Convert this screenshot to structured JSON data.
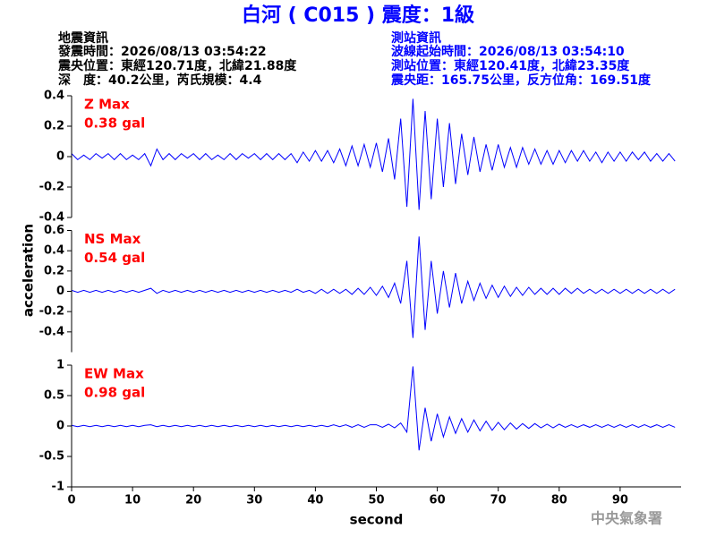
{
  "header": {
    "title": "白河 ( C015 ) 震度：1級",
    "left": [
      "地震資訊",
      "發震時間：2026/08/13 03:54:22",
      "震央位置：東經120.71度，北緯21.88度",
      "深　度：40.2公里，芮氏規模：4.4"
    ],
    "right": [
      "測站資訊",
      "波線起始時間：2026/08/13 03:54:10",
      "測站位置：東經120.41度，北緯23.35度",
      "震央距：165.75公里，反方位角：169.51度"
    ],
    "footer": "中央氣象署"
  },
  "ylabel": "acceleration",
  "chart_data": [
    {
      "type": "line",
      "annotation": "Z Max",
      "max_label": "0.38 gal",
      "color": "#0000ff",
      "annotation_color": "#ff0000",
      "ylim": [
        -0.4,
        0.4
      ],
      "yticks": [
        0.4,
        0.2,
        0,
        -0.2,
        -0.4
      ],
      "xlim": [
        0,
        100
      ],
      "x": [
        0,
        1,
        2,
        3,
        4,
        5,
        6,
        7,
        8,
        9,
        10,
        11,
        12,
        13,
        14,
        15,
        16,
        17,
        18,
        19,
        20,
        21,
        22,
        23,
        24,
        25,
        26,
        27,
        28,
        29,
        30,
        31,
        32,
        33,
        34,
        35,
        36,
        37,
        38,
        39,
        40,
        41,
        42,
        43,
        44,
        45,
        46,
        47,
        48,
        49,
        50,
        51,
        52,
        53,
        54,
        55,
        56,
        57,
        58,
        59,
        60,
        61,
        62,
        63,
        64,
        65,
        66,
        67,
        68,
        69,
        70,
        71,
        72,
        73,
        74,
        75,
        76,
        77,
        78,
        79,
        80,
        81,
        82,
        83,
        84,
        85,
        86,
        87,
        88,
        89,
        90,
        91,
        92,
        93,
        94,
        95,
        96,
        97,
        98,
        99
      ],
      "values": [
        0.02,
        -0.02,
        0.01,
        -0.02,
        0.02,
        -0.01,
        0.02,
        -0.02,
        0.02,
        -0.02,
        0.01,
        -0.02,
        0.02,
        -0.06,
        0.05,
        -0.02,
        0.02,
        -0.02,
        0.02,
        -0.01,
        0.02,
        -0.02,
        0.02,
        -0.02,
        0.01,
        -0.02,
        0.02,
        -0.02,
        0.02,
        -0.01,
        0.02,
        -0.02,
        0.02,
        -0.02,
        0.02,
        -0.02,
        0.02,
        -0.04,
        0.03,
        -0.03,
        0.04,
        -0.03,
        0.04,
        -0.04,
        0.05,
        -0.06,
        0.07,
        -0.06,
        0.08,
        -0.07,
        0.09,
        -0.1,
        0.12,
        -0.15,
        0.25,
        -0.33,
        0.38,
        -0.35,
        0.3,
        -0.28,
        0.25,
        -0.2,
        0.22,
        -0.18,
        0.15,
        -0.12,
        0.13,
        -0.1,
        0.08,
        -0.09,
        0.08,
        -0.07,
        0.06,
        -0.07,
        0.06,
        -0.05,
        0.05,
        -0.05,
        0.04,
        -0.05,
        0.04,
        -0.04,
        0.04,
        -0.03,
        0.04,
        -0.03,
        0.03,
        -0.04,
        0.03,
        -0.03,
        0.03,
        -0.03,
        0.03,
        -0.02,
        0.03,
        -0.03,
        0.02,
        -0.03,
        0.02,
        -0.03
      ]
    },
    {
      "type": "line",
      "annotation": "NS Max",
      "max_label": "0.54 gal",
      "color": "#0000ff",
      "annotation_color": "#ff0000",
      "ylim": [
        -0.6,
        0.6
      ],
      "yticks": [
        0.6,
        0.4,
        0.2,
        0,
        -0.2,
        -0.4
      ],
      "xlim": [
        0,
        100
      ],
      "x": [
        0,
        1,
        2,
        3,
        4,
        5,
        6,
        7,
        8,
        9,
        10,
        11,
        12,
        13,
        14,
        15,
        16,
        17,
        18,
        19,
        20,
        21,
        22,
        23,
        24,
        25,
        26,
        27,
        28,
        29,
        30,
        31,
        32,
        33,
        34,
        35,
        36,
        37,
        38,
        39,
        40,
        41,
        42,
        43,
        44,
        45,
        46,
        47,
        48,
        49,
        50,
        51,
        52,
        53,
        54,
        55,
        56,
        57,
        58,
        59,
        60,
        61,
        62,
        63,
        64,
        65,
        66,
        67,
        68,
        69,
        70,
        71,
        72,
        73,
        74,
        75,
        76,
        77,
        78,
        79,
        80,
        81,
        82,
        83,
        84,
        85,
        86,
        87,
        88,
        89,
        90,
        91,
        92,
        93,
        94,
        95,
        96,
        97,
        98,
        99
      ],
      "values": [
        0.01,
        -0.01,
        0.01,
        -0.01,
        0.01,
        -0.01,
        0.01,
        -0.01,
        0.01,
        -0.01,
        0.01,
        -0.01,
        0.01,
        0.03,
        -0.02,
        0.01,
        -0.01,
        0.01,
        -0.01,
        0.01,
        -0.01,
        0.01,
        -0.01,
        0.01,
        -0.01,
        0.01,
        -0.01,
        0.01,
        -0.01,
        0.01,
        -0.01,
        0.01,
        -0.01,
        0.01,
        -0.01,
        0.01,
        -0.01,
        0.02,
        -0.01,
        0.01,
        -0.02,
        0.02,
        -0.02,
        0.02,
        -0.02,
        0.02,
        -0.03,
        0.03,
        -0.03,
        0.04,
        -0.04,
        0.05,
        -0.06,
        0.08,
        -0.12,
        0.3,
        -0.46,
        0.54,
        -0.38,
        0.3,
        -0.22,
        0.2,
        -0.16,
        0.18,
        -0.12,
        0.1,
        -0.09,
        0.08,
        -0.07,
        0.06,
        -0.06,
        0.05,
        -0.05,
        0.04,
        -0.04,
        0.04,
        -0.03,
        0.03,
        -0.03,
        0.03,
        -0.03,
        0.03,
        -0.02,
        0.03,
        -0.02,
        0.02,
        -0.02,
        0.02,
        -0.02,
        0.02,
        -0.02,
        0.02,
        -0.02,
        0.02,
        -0.02,
        0.02,
        -0.02,
        0.02,
        -0.02,
        0.02
      ]
    },
    {
      "type": "line",
      "annotation": "EW Max",
      "max_label": "0.98 gal",
      "color": "#0000ff",
      "annotation_color": "#ff0000",
      "ylim": [
        -1,
        1
      ],
      "yticks": [
        1,
        0.5,
        0,
        -0.5,
        -1
      ],
      "xlim": [
        0,
        100
      ],
      "xticks": [
        0,
        10,
        20,
        30,
        40,
        50,
        60,
        70,
        80,
        90
      ],
      "xlabel": "second",
      "x": [
        0,
        1,
        2,
        3,
        4,
        5,
        6,
        7,
        8,
        9,
        10,
        11,
        12,
        13,
        14,
        15,
        16,
        17,
        18,
        19,
        20,
        21,
        22,
        23,
        24,
        25,
        26,
        27,
        28,
        29,
        30,
        31,
        32,
        33,
        34,
        35,
        36,
        37,
        38,
        39,
        40,
        41,
        42,
        43,
        44,
        45,
        46,
        47,
        48,
        49,
        50,
        51,
        52,
        53,
        54,
        55,
        56,
        57,
        58,
        59,
        60,
        61,
        62,
        63,
        64,
        65,
        66,
        67,
        68,
        69,
        70,
        71,
        72,
        73,
        74,
        75,
        76,
        77,
        78,
        79,
        80,
        81,
        82,
        83,
        84,
        85,
        86,
        87,
        88,
        89,
        90,
        91,
        92,
        93,
        94,
        95,
        96,
        97,
        98,
        99
      ],
      "values": [
        0.01,
        -0.01,
        0.01,
        -0.01,
        0.01,
        -0.01,
        0.01,
        -0.01,
        0.01,
        -0.01,
        0.01,
        -0.01,
        0.01,
        0.02,
        -0.01,
        0.01,
        -0.01,
        0.01,
        -0.01,
        0.01,
        -0.01,
        0.01,
        -0.01,
        0.01,
        -0.01,
        0.01,
        -0.01,
        0.01,
        -0.01,
        0.01,
        -0.01,
        0.01,
        -0.01,
        0.01,
        -0.01,
        0.01,
        -0.01,
        0.01,
        -0.01,
        0.01,
        -0.01,
        0.01,
        -0.01,
        0.02,
        -0.01,
        0.02,
        -0.02,
        0.02,
        -0.02,
        0.02,
        0.02,
        -0.02,
        0.03,
        -0.03,
        0.05,
        -0.1,
        0.98,
        -0.4,
        0.3,
        -0.25,
        0.2,
        -0.18,
        0.15,
        -0.12,
        0.12,
        -0.1,
        0.1,
        -0.08,
        0.08,
        -0.07,
        0.06,
        -0.06,
        0.05,
        -0.05,
        0.04,
        -0.04,
        0.04,
        -0.03,
        0.03,
        -0.03,
        0.03,
        -0.02,
        0.02,
        -0.02,
        0.02,
        -0.02,
        0.02,
        -0.02,
        0.02,
        -0.02,
        0.02,
        -0.02,
        0.02,
        -0.02,
        0.02,
        -0.02,
        0.02,
        -0.02,
        0.02,
        -0.02
      ]
    }
  ]
}
